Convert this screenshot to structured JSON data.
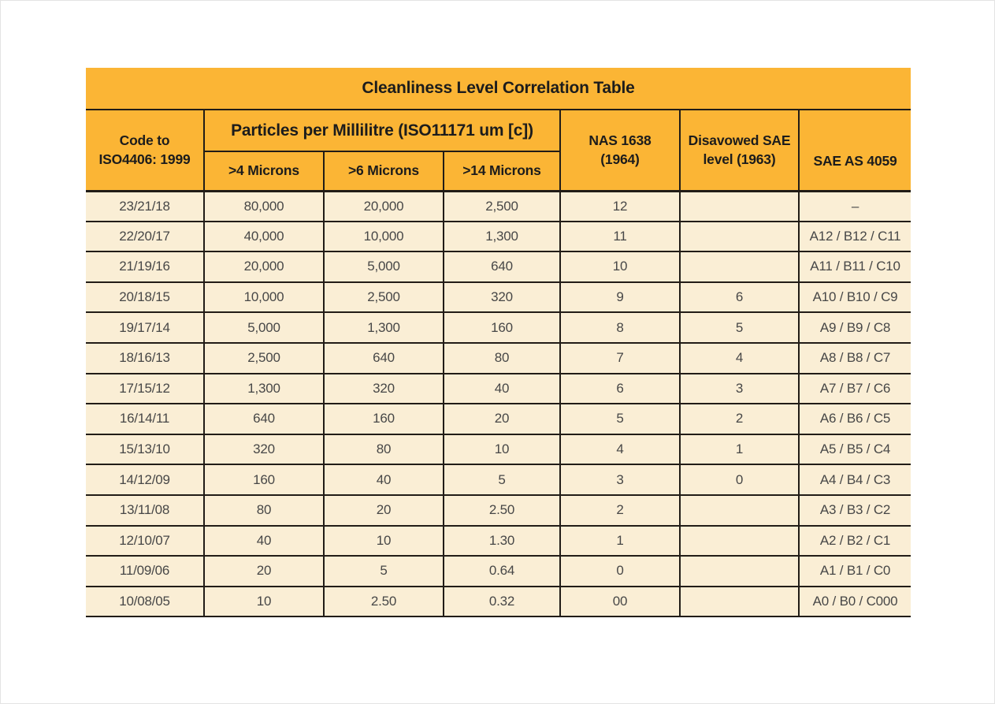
{
  "colors": {
    "header_bg": "#FBB535",
    "row_bg": "#FAEED5",
    "border": "#211C17",
    "header_text": "#1C1C1C",
    "data_text": "#474747"
  },
  "chart_data": {
    "type": "table",
    "title": "Cleanliness Level Correlation Table",
    "header_display": {
      "code": [
        "Code to",
        "ISO4406: 1999"
      ],
      "particles_group": "Particles per Millilitre (ISO11171 um [c])",
      "m4": ">4 Microns",
      "m6": ">6 Microns",
      "m14": ">14 Microns",
      "nas": [
        "NAS 1638",
        "(1964)"
      ],
      "disavowed": [
        "Disavowed SAE",
        "level (1963)"
      ],
      "sae": "SAE AS 4059"
    },
    "columns": [
      {
        "key": "code",
        "label": "Code to ISO4406: 1999"
      },
      {
        "key": "m4",
        "label": ">4 Microns"
      },
      {
        "key": "m6",
        "label": ">6 Microns"
      },
      {
        "key": "m14",
        "label": ">14 Microns"
      },
      {
        "key": "nas",
        "label": "NAS 1638 (1964)"
      },
      {
        "key": "disavowed",
        "label": "Disavowed SAE level (1963)"
      },
      {
        "key": "sae",
        "label": "SAE AS 4059"
      }
    ],
    "column_keys": [
      "code",
      "m4",
      "m6",
      "m14",
      "nas",
      "disavowed",
      "sae"
    ],
    "rows": [
      {
        "code": "23/21/18",
        "m4": "80,000",
        "m6": "20,000",
        "m14": "2,500",
        "nas": "12",
        "disavowed": "",
        "sae": "–"
      },
      {
        "code": "22/20/17",
        "m4": "40,000",
        "m6": "10,000",
        "m14": "1,300",
        "nas": "11",
        "disavowed": "",
        "sae": "A12 / B12 / C11"
      },
      {
        "code": "21/19/16",
        "m4": "20,000",
        "m6": "5,000",
        "m14": "640",
        "nas": "10",
        "disavowed": "",
        "sae": "A11 / B11 / C10"
      },
      {
        "code": "20/18/15",
        "m4": "10,000",
        "m6": "2,500",
        "m14": "320",
        "nas": "9",
        "disavowed": "6",
        "sae": "A10 / B10 / C9"
      },
      {
        "code": "19/17/14",
        "m4": "5,000",
        "m6": "1,300",
        "m14": "160",
        "nas": "8",
        "disavowed": "5",
        "sae": "A9 / B9 / C8"
      },
      {
        "code": "18/16/13",
        "m4": "2,500",
        "m6": "640",
        "m14": "80",
        "nas": "7",
        "disavowed": "4",
        "sae": "A8 / B8 / C7"
      },
      {
        "code": "17/15/12",
        "m4": "1,300",
        "m6": "320",
        "m14": "40",
        "nas": "6",
        "disavowed": "3",
        "sae": "A7 / B7 / C6"
      },
      {
        "code": "16/14/11",
        "m4": "640",
        "m6": "160",
        "m14": "20",
        "nas": "5",
        "disavowed": "2",
        "sae": "A6 / B6 / C5"
      },
      {
        "code": "15/13/10",
        "m4": "320",
        "m6": "80",
        "m14": "10",
        "nas": "4",
        "disavowed": "1",
        "sae": "A5 / B5 / C4"
      },
      {
        "code": "14/12/09",
        "m4": "160",
        "m6": "40",
        "m14": "5",
        "nas": "3",
        "disavowed": "0",
        "sae": "A4 / B4 / C3"
      },
      {
        "code": "13/11/08",
        "m4": "80",
        "m6": "20",
        "m14": "2.50",
        "nas": "2",
        "disavowed": "",
        "sae": "A3 / B3 / C2"
      },
      {
        "code": "12/10/07",
        "m4": "40",
        "m6": "10",
        "m14": "1.30",
        "nas": "1",
        "disavowed": "",
        "sae": "A2 / B2 / C1"
      },
      {
        "code": "11/09/06",
        "m4": "20",
        "m6": "5",
        "m14": "0.64",
        "nas": "0",
        "disavowed": "",
        "sae": "A1 / B1 / C0"
      },
      {
        "code": "10/08/05",
        "m4": "10",
        "m6": "2.50",
        "m14": "0.32",
        "nas": "00",
        "disavowed": "",
        "sae": "A0 / B0 / C000"
      }
    ]
  }
}
